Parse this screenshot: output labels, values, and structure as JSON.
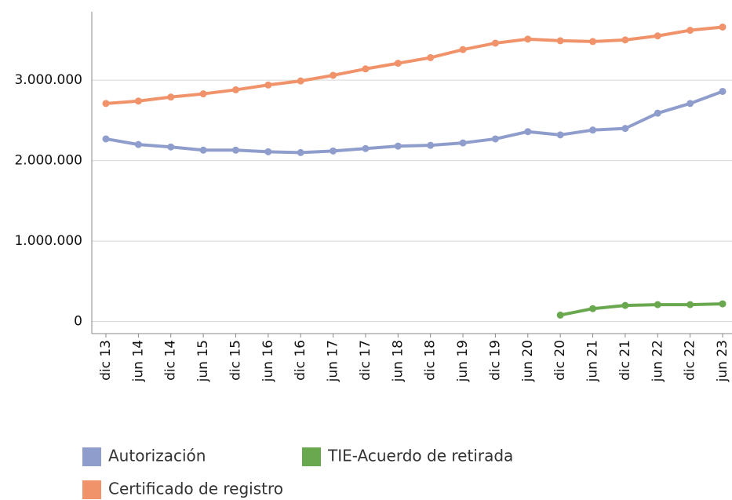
{
  "chart_data": {
    "type": "line",
    "categories": [
      "dic 13",
      "jun 14",
      "dic 14",
      "jun 15",
      "dic 15",
      "jun 16",
      "dic 16",
      "jun 17",
      "dic 17",
      "jun 18",
      "dic 18",
      "jun 19",
      "dic 19",
      "jun 20",
      "dic 20",
      "jun 21",
      "dic 21",
      "jun 22",
      "dic 22",
      "jun 23"
    ],
    "series": [
      {
        "name": "Autorización",
        "color": "#8f9dcc",
        "values": [
          2270000,
          2200000,
          2170000,
          2130000,
          2130000,
          2110000,
          2100000,
          2120000,
          2150000,
          2180000,
          2190000,
          2220000,
          2270000,
          2360000,
          2320000,
          2380000,
          2400000,
          2590000,
          2710000,
          2860000
        ]
      },
      {
        "name": "Certificado de registro",
        "color": "#f0936b",
        "values": [
          2710000,
          2740000,
          2790000,
          2830000,
          2880000,
          2940000,
          2990000,
          3060000,
          3140000,
          3210000,
          3280000,
          3380000,
          3460000,
          3510000,
          3490000,
          3480000,
          3500000,
          3550000,
          3620000,
          3660000
        ]
      },
      {
        "name": "TIE-Acuerdo de retirada",
        "color": "#6aa84f",
        "values": [
          null,
          null,
          null,
          null,
          null,
          null,
          null,
          null,
          null,
          null,
          null,
          null,
          null,
          null,
          80000,
          160000,
          200000,
          210000,
          210000,
          220000
        ]
      }
    ],
    "ylim": [
      -150000,
      3850000
    ],
    "yticks": [
      0,
      {
        "value": 1000000,
        "label": "1.000.000"
      },
      {
        "value": 2000000,
        "label": "2.000.000"
      },
      {
        "value": 3000000,
        "label": "3.000.000"
      }
    ],
    "grid": true,
    "legend": "bottom"
  }
}
